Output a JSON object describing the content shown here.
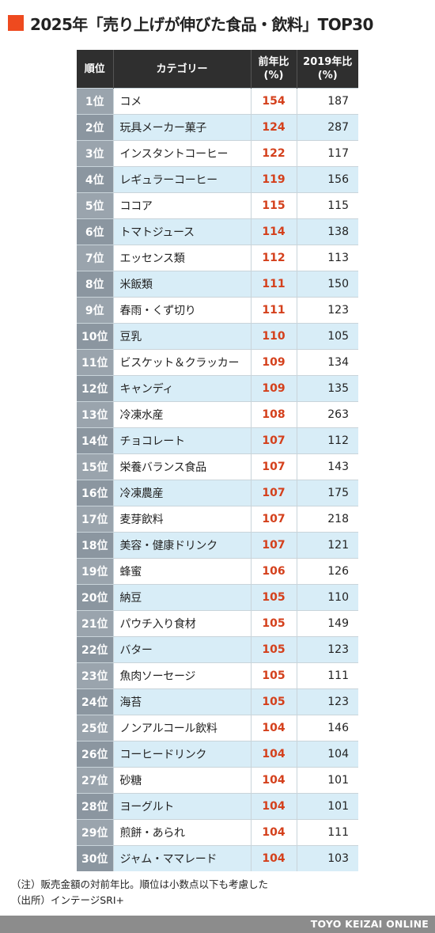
{
  "title": "2025年「売り上げが伸びた食品・飲料」TOP30",
  "chart_data": {
    "type": "table",
    "columns": [
      "順位",
      "カテゴリー",
      "前年比\n(%)",
      "2019年比\n(%)"
    ],
    "rows": [
      [
        "1位",
        "コメ",
        "154",
        "187"
      ],
      [
        "2位",
        "玩具メーカー菓子",
        "124",
        "287"
      ],
      [
        "3位",
        "インスタントコーヒー",
        "122",
        "117"
      ],
      [
        "4位",
        "レギュラーコーヒー",
        "119",
        "156"
      ],
      [
        "5位",
        "ココア",
        "115",
        "115"
      ],
      [
        "6位",
        "トマトジュース",
        "114",
        "138"
      ],
      [
        "7位",
        "エッセンス類",
        "112",
        "113"
      ],
      [
        "8位",
        "米飯類",
        "111",
        "150"
      ],
      [
        "9位",
        "春雨・くず切り",
        "111",
        "123"
      ],
      [
        "10位",
        "豆乳",
        "110",
        "105"
      ],
      [
        "11位",
        "ビスケット＆クラッカー",
        "109",
        "134"
      ],
      [
        "12位",
        "キャンディ",
        "109",
        "135"
      ],
      [
        "13位",
        "冷凍水産",
        "108",
        "263"
      ],
      [
        "14位",
        "チョコレート",
        "107",
        "112"
      ],
      [
        "15位",
        "栄養バランス食品",
        "107",
        "143"
      ],
      [
        "16位",
        "冷凍農産",
        "107",
        "175"
      ],
      [
        "17位",
        "麦芽飲料",
        "107",
        "218"
      ],
      [
        "18位",
        "美容・健康ドリンク",
        "107",
        "121"
      ],
      [
        "19位",
        "蜂蜜",
        "106",
        "126"
      ],
      [
        "20位",
        "納豆",
        "105",
        "110"
      ],
      [
        "21位",
        "パウチ入り食材",
        "105",
        "149"
      ],
      [
        "22位",
        "バター",
        "105",
        "123"
      ],
      [
        "23位",
        "魚肉ソーセージ",
        "105",
        "111"
      ],
      [
        "24位",
        "海苔",
        "105",
        "123"
      ],
      [
        "25位",
        "ノンアルコール飲料",
        "104",
        "146"
      ],
      [
        "26位",
        "コーヒードリンク",
        "104",
        "104"
      ],
      [
        "27位",
        "砂糖",
        "104",
        "101"
      ],
      [
        "28位",
        "ヨーグルト",
        "104",
        "101"
      ],
      [
        "29位",
        "煎餅・あられ",
        "104",
        "111"
      ],
      [
        "30位",
        "ジャム・ママレード",
        "104",
        "103"
      ]
    ]
  },
  "notes": {
    "note": "（注）販売金額の対前年比。順位は小数点以下も考慮した",
    "source": "（出所）インテージSRI+"
  },
  "footer": {
    "brand": "TOYO KEIZAI ONLINE"
  },
  "colors": {
    "accent": "#ee4a1f",
    "header_bg": "#2f2f2f",
    "rank_bg": "#9aa4ad",
    "alt_row_bg": "#d8edf7",
    "yoy_text": "#d4401c",
    "footer_bg": "#8c8c8c"
  }
}
